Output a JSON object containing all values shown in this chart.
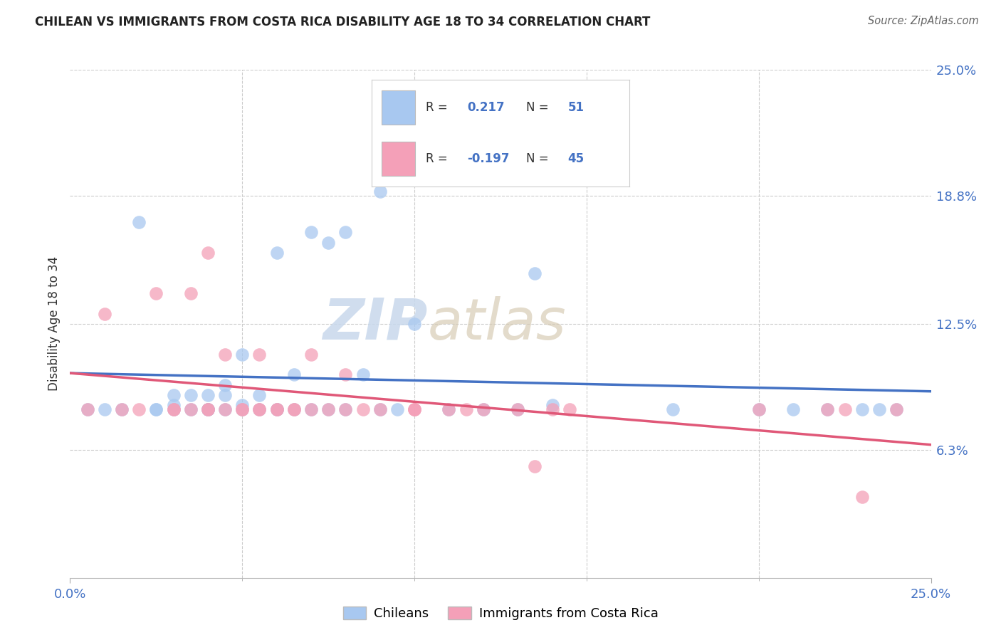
{
  "title": "CHILEAN VS IMMIGRANTS FROM COSTA RICA DISABILITY AGE 18 TO 34 CORRELATION CHART",
  "source": "Source: ZipAtlas.com",
  "ylabel": "Disability Age 18 to 34",
  "xlim": [
    0.0,
    0.25
  ],
  "ylim": [
    0.0,
    0.25
  ],
  "ytick_labels": [
    "6.3%",
    "12.5%",
    "18.8%",
    "25.0%"
  ],
  "ytick_values": [
    0.063,
    0.125,
    0.188,
    0.25
  ],
  "blue_R": 0.217,
  "blue_N": 51,
  "pink_R": -0.197,
  "pink_N": 45,
  "blue_color": "#A8C8F0",
  "pink_color": "#F4A0B8",
  "blue_line_color": "#4472C4",
  "pink_line_color": "#E05878",
  "watermark_zip": "ZIP",
  "watermark_atlas": "atlas",
  "legend_label_blue": "Chileans",
  "legend_label_pink": "Immigrants from Costa Rica",
  "blue_scatter_x": [
    0.005,
    0.01,
    0.015,
    0.02,
    0.025,
    0.025,
    0.03,
    0.03,
    0.03,
    0.035,
    0.035,
    0.04,
    0.04,
    0.04,
    0.04,
    0.045,
    0.045,
    0.045,
    0.05,
    0.05,
    0.05,
    0.055,
    0.055,
    0.06,
    0.06,
    0.06,
    0.065,
    0.065,
    0.07,
    0.07,
    0.075,
    0.075,
    0.08,
    0.08,
    0.085,
    0.09,
    0.09,
    0.095,
    0.1,
    0.11,
    0.12,
    0.13,
    0.135,
    0.14,
    0.175,
    0.2,
    0.21,
    0.22,
    0.23,
    0.235,
    0.24
  ],
  "blue_scatter_y": [
    0.083,
    0.083,
    0.083,
    0.175,
    0.083,
    0.083,
    0.083,
    0.085,
    0.09,
    0.083,
    0.09,
    0.083,
    0.083,
    0.083,
    0.09,
    0.083,
    0.09,
    0.095,
    0.083,
    0.085,
    0.11,
    0.083,
    0.09,
    0.083,
    0.083,
    0.16,
    0.083,
    0.1,
    0.083,
    0.17,
    0.083,
    0.165,
    0.083,
    0.17,
    0.1,
    0.083,
    0.19,
    0.083,
    0.125,
    0.083,
    0.083,
    0.083,
    0.15,
    0.085,
    0.083,
    0.083,
    0.083,
    0.083,
    0.083,
    0.083,
    0.083
  ],
  "pink_scatter_x": [
    0.005,
    0.01,
    0.015,
    0.02,
    0.025,
    0.03,
    0.03,
    0.035,
    0.035,
    0.04,
    0.04,
    0.04,
    0.045,
    0.045,
    0.05,
    0.05,
    0.055,
    0.055,
    0.055,
    0.06,
    0.06,
    0.065,
    0.065,
    0.07,
    0.07,
    0.075,
    0.08,
    0.08,
    0.085,
    0.09,
    0.1,
    0.1,
    0.1,
    0.11,
    0.115,
    0.12,
    0.13,
    0.135,
    0.14,
    0.145,
    0.2,
    0.22,
    0.225,
    0.23,
    0.24
  ],
  "pink_scatter_y": [
    0.083,
    0.13,
    0.083,
    0.083,
    0.14,
    0.083,
    0.083,
    0.083,
    0.14,
    0.083,
    0.083,
    0.16,
    0.083,
    0.11,
    0.083,
    0.083,
    0.083,
    0.11,
    0.083,
    0.083,
    0.083,
    0.083,
    0.083,
    0.083,
    0.11,
    0.083,
    0.083,
    0.1,
    0.083,
    0.083,
    0.083,
    0.083,
    0.083,
    0.083,
    0.083,
    0.083,
    0.083,
    0.055,
    0.083,
    0.083,
    0.083,
    0.083,
    0.083,
    0.04,
    0.083
  ]
}
